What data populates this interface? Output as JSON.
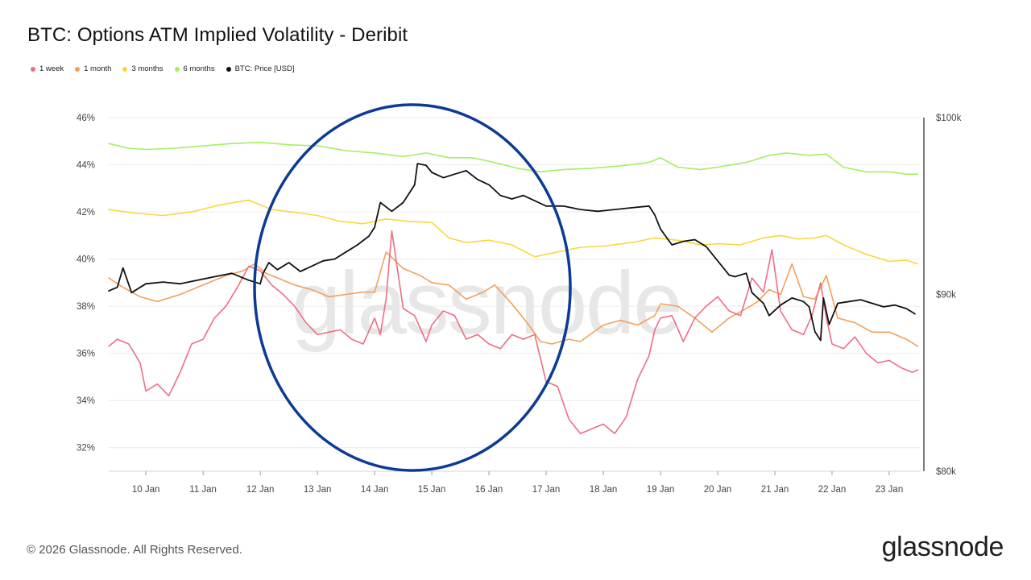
{
  "title": "BTC: Options ATM Implied Volatility - Deribit",
  "footer": "© 2026 Glassnode. All Rights Reserved.",
  "brand": "glassnode",
  "watermark": "glassnode",
  "legend": [
    {
      "label": "1 week",
      "color": "#ee6e83"
    },
    {
      "label": "1 month",
      "color": "#f2a05a"
    },
    {
      "label": "3 months",
      "color": "#f7d840"
    },
    {
      "label": "6 months",
      "color": "#a6ee62"
    },
    {
      "label": "BTC: Price [USD]",
      "color": "#111111"
    }
  ],
  "chart_data": {
    "type": "line",
    "title": "BTC: Options ATM Implied Volatility - Deribit",
    "x_range": [
      9.35,
      23.55
    ],
    "x_tick_labels": [
      {
        "x": 10,
        "label": "10 Jan"
      },
      {
        "x": 11,
        "label": "11 Jan"
      },
      {
        "x": 12,
        "label": "12 Jan"
      },
      {
        "x": 13,
        "label": "13 Jan"
      },
      {
        "x": 14,
        "label": "14 Jan"
      },
      {
        "x": 15,
        "label": "15 Jan"
      },
      {
        "x": 16,
        "label": "16 Jan"
      },
      {
        "x": 17,
        "label": "17 Jan"
      },
      {
        "x": 18,
        "label": "18 Jan"
      },
      {
        "x": 19,
        "label": "19 Jan"
      },
      {
        "x": 20,
        "label": "20 Jan"
      },
      {
        "x": 21,
        "label": "21 Jan"
      },
      {
        "x": 22,
        "label": "22 Jan"
      },
      {
        "x": 23,
        "label": "23 Jan"
      }
    ],
    "y_left": {
      "range": [
        31,
        46
      ],
      "ticks": [
        32,
        34,
        36,
        38,
        40,
        42,
        44,
        46
      ],
      "tick_labels": [
        "32%",
        "34%",
        "36%",
        "38%",
        "40%",
        "42%",
        "44%",
        "46%"
      ]
    },
    "y_right": {
      "range": [
        80000,
        100000
      ],
      "ticks": [
        80000,
        90000,
        100000
      ],
      "tick_labels": [
        "$80k",
        "$90k",
        "$100k"
      ]
    },
    "series": [
      {
        "name": "6 months",
        "axis": "left",
        "color": "#a6ee62",
        "x": [
          9.35,
          9.7,
          10.0,
          10.5,
          11.0,
          11.5,
          12.0,
          12.5,
          13.0,
          13.5,
          14.0,
          14.5,
          14.9,
          15.3,
          15.7,
          16.0,
          16.5,
          16.9,
          17.3,
          17.8,
          18.3,
          18.8,
          19.0,
          19.3,
          19.7,
          20.0,
          20.5,
          20.9,
          21.2,
          21.6,
          21.9,
          22.2,
          22.6,
          23.0,
          23.3,
          23.5
        ],
        "values": [
          44.9,
          44.7,
          44.65,
          44.7,
          44.8,
          44.9,
          44.95,
          44.85,
          44.8,
          44.6,
          44.5,
          44.35,
          44.5,
          44.3,
          44.3,
          44.15,
          43.85,
          43.7,
          43.8,
          43.85,
          43.95,
          44.1,
          44.3,
          43.9,
          43.8,
          43.9,
          44.1,
          44.4,
          44.5,
          44.4,
          44.45,
          43.9,
          43.7,
          43.7,
          43.6,
          43.6
        ]
      },
      {
        "name": "3 months",
        "axis": "left",
        "color": "#f7d840",
        "x": [
          9.35,
          9.8,
          10.3,
          10.8,
          11.3,
          11.8,
          12.2,
          12.7,
          13.0,
          13.4,
          13.8,
          14.2,
          14.6,
          15.0,
          15.3,
          15.6,
          16.0,
          16.4,
          16.8,
          17.2,
          17.6,
          18.0,
          18.5,
          18.9,
          19.3,
          19.7,
          20.0,
          20.4,
          20.8,
          21.1,
          21.4,
          21.7,
          21.9,
          22.2,
          22.6,
          23.0,
          23.3,
          23.5
        ],
        "values": [
          42.1,
          41.95,
          41.85,
          42.0,
          42.3,
          42.5,
          42.1,
          41.95,
          41.85,
          41.6,
          41.5,
          41.7,
          41.6,
          41.55,
          40.9,
          40.7,
          40.8,
          40.6,
          40.1,
          40.3,
          40.5,
          40.55,
          40.7,
          40.9,
          40.8,
          40.6,
          40.65,
          40.6,
          40.9,
          41.0,
          40.85,
          40.9,
          41.0,
          40.6,
          40.2,
          39.9,
          39.95,
          39.8
        ]
      },
      {
        "name": "1 month",
        "axis": "left",
        "color": "#f2a05a",
        "x": [
          9.35,
          9.6,
          9.9,
          10.2,
          10.6,
          11.0,
          11.4,
          11.7,
          11.9,
          12.1,
          12.3,
          12.6,
          12.9,
          13.2,
          13.5,
          13.8,
          14.0,
          14.2,
          14.5,
          14.8,
          15.0,
          15.3,
          15.6,
          15.9,
          16.1,
          16.4,
          16.7,
          16.9,
          17.1,
          17.4,
          17.6,
          18.0,
          18.3,
          18.6,
          18.9,
          19.0,
          19.3,
          19.6,
          19.9,
          20.2,
          20.5,
          20.7,
          20.9,
          21.1,
          21.3,
          21.5,
          21.7,
          21.9,
          22.1,
          22.4,
          22.7,
          23.0,
          23.3,
          23.5
        ],
        "values": [
          39.2,
          38.8,
          38.4,
          38.2,
          38.5,
          38.9,
          39.3,
          39.5,
          39.8,
          39.4,
          39.2,
          38.9,
          38.7,
          38.4,
          38.5,
          38.6,
          38.6,
          40.3,
          39.6,
          39.3,
          39.0,
          38.9,
          38.3,
          38.6,
          38.9,
          38.1,
          37.2,
          36.5,
          36.4,
          36.6,
          36.5,
          37.2,
          37.4,
          37.2,
          37.6,
          38.1,
          38.0,
          37.5,
          36.9,
          37.5,
          37.9,
          38.2,
          38.7,
          38.5,
          39.8,
          38.4,
          38.3,
          39.3,
          37.5,
          37.3,
          36.9,
          36.9,
          36.6,
          36.3
        ]
      },
      {
        "name": "1 week",
        "axis": "left",
        "color": "#ee6e83",
        "x": [
          9.35,
          9.5,
          9.7,
          9.9,
          10.0,
          10.2,
          10.4,
          10.6,
          10.8,
          11.0,
          11.2,
          11.4,
          11.6,
          11.8,
          12.0,
          12.2,
          12.4,
          12.6,
          12.8,
          13.0,
          13.2,
          13.4,
          13.6,
          13.8,
          14.0,
          14.1,
          14.2,
          14.3,
          14.5,
          14.7,
          14.9,
          15.0,
          15.2,
          15.4,
          15.6,
          15.8,
          16.0,
          16.2,
          16.4,
          16.6,
          16.8,
          17.0,
          17.2,
          17.4,
          17.6,
          17.8,
          18.0,
          18.2,
          18.4,
          18.6,
          18.8,
          18.9,
          19.0,
          19.2,
          19.4,
          19.6,
          19.8,
          20.0,
          20.2,
          20.4,
          20.6,
          20.8,
          20.95,
          21.1,
          21.3,
          21.5,
          21.65,
          21.8,
          21.9,
          22.0,
          22.2,
          22.4,
          22.6,
          22.8,
          23.0,
          23.2,
          23.4,
          23.5
        ],
        "values": [
          36.3,
          36.6,
          36.4,
          35.6,
          34.4,
          34.7,
          34.2,
          35.2,
          36.4,
          36.6,
          37.5,
          38.0,
          38.8,
          39.7,
          39.5,
          38.9,
          38.5,
          38.0,
          37.3,
          36.8,
          36.9,
          37.0,
          36.6,
          36.4,
          37.5,
          36.8,
          38.3,
          41.2,
          37.9,
          37.6,
          36.5,
          37.2,
          37.8,
          37.6,
          36.6,
          36.8,
          36.4,
          36.2,
          36.8,
          36.6,
          36.8,
          34.8,
          34.6,
          33.2,
          32.6,
          32.8,
          33.0,
          32.6,
          33.3,
          34.9,
          35.9,
          37.0,
          37.5,
          37.6,
          36.5,
          37.5,
          38.0,
          38.4,
          37.8,
          37.6,
          39.2,
          38.6,
          40.4,
          37.8,
          37.0,
          36.8,
          37.6,
          39.0,
          37.5,
          36.4,
          36.2,
          36.7,
          36.0,
          35.6,
          35.7,
          35.4,
          35.2,
          35.3
        ]
      },
      {
        "name": "BTC: Price [USD]",
        "axis": "right",
        "color": "#111111",
        "x": [
          9.35,
          9.5,
          9.6,
          9.75,
          9.9,
          10.0,
          10.3,
          10.6,
          10.9,
          11.2,
          11.5,
          11.8,
          12.0,
          12.05,
          12.15,
          12.3,
          12.5,
          12.7,
          12.9,
          13.1,
          13.3,
          13.5,
          13.7,
          13.9,
          14.0,
          14.1,
          14.3,
          14.5,
          14.7,
          14.75,
          14.9,
          15.0,
          15.2,
          15.4,
          15.6,
          15.8,
          16.0,
          16.2,
          16.4,
          16.6,
          16.8,
          17.0,
          17.3,
          17.6,
          17.9,
          18.2,
          18.5,
          18.8,
          18.9,
          19.0,
          19.2,
          19.4,
          19.6,
          19.8,
          20.0,
          20.2,
          20.3,
          20.5,
          20.6,
          20.8,
          20.9,
          21.1,
          21.3,
          21.5,
          21.6,
          21.7,
          21.8,
          21.85,
          21.95,
          22.1,
          22.3,
          22.5,
          22.7,
          22.9,
          23.1,
          23.3,
          23.45
        ],
        "values": [
          90200,
          90400,
          91500,
          90100,
          90400,
          90600,
          90700,
          90600,
          90800,
          91000,
          91200,
          90800,
          90600,
          91200,
          91800,
          91400,
          91800,
          91300,
          91600,
          91900,
          92000,
          92400,
          92800,
          93300,
          93800,
          95200,
          94700,
          95200,
          96200,
          97400,
          97300,
          96900,
          96600,
          96800,
          97000,
          96500,
          96200,
          95600,
          95400,
          95600,
          95300,
          95000,
          95000,
          94800,
          94700,
          94800,
          94900,
          95000,
          94500,
          93700,
          92800,
          93000,
          93100,
          92700,
          91900,
          91100,
          91000,
          91200,
          90100,
          89500,
          88800,
          89400,
          89800,
          89600,
          89300,
          87900,
          87400,
          89800,
          88300,
          89500,
          89600,
          89700,
          89500,
          89300,
          89400,
          89200,
          88900
        ]
      }
    ]
  }
}
